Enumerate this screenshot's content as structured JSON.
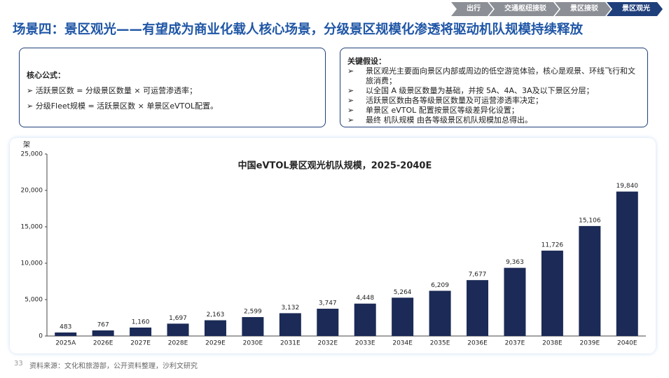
{
  "nav": {
    "tabs": [
      "出行",
      "交通枢纽接驳",
      "景区接驳",
      "景区观光"
    ]
  },
  "header": {
    "title": "场景四：景区观光——有望成为商业化载人核心场景，分级景区规模化渗透将驱动机队规模持续释放"
  },
  "left_box": {
    "heading": "核心公式：",
    "items": [
      "活跃景区数 = 分级景区数量 × 可运营渗透率；",
      "分级Fleet规模 = 活跃景区数 × 单景区eVTOL配置。"
    ]
  },
  "right_box": {
    "heading": "关键假设：",
    "items": [
      "景区观光主要面向景区内部或周边的低空游览体验，核心是观景、环线飞行和文旅消费；",
      "以全国 A 级景区数量为基础，并按 5A、4A、3A及以下景区分层；",
      "活跃景区数由各等级景区数量及可运营渗透率决定；",
      "单景区 eVTOL 配置按景区等级差异化设置；",
      "最终 机队规模 由各等级景区机队规模加总得出。"
    ]
  },
  "chart_data": {
    "type": "bar",
    "title": "中国eVTOL景区观光机队规模，2025-2040E",
    "y_label": "架",
    "categories": [
      "2025A",
      "2026E",
      "2027E",
      "2028E",
      "2029E",
      "2030E",
      "2031E",
      "2032E",
      "2033E",
      "2034E",
      "2035E",
      "2036E",
      "2037E",
      "2038E",
      "2039E",
      "2040E"
    ],
    "values": [
      483,
      767,
      1160,
      1697,
      2163,
      2599,
      3132,
      3747,
      4448,
      5264,
      6209,
      7677,
      9363,
      11726,
      15106,
      19840
    ],
    "value_labels": [
      "483",
      "767",
      "1,160",
      "1,697",
      "2,163",
      "2,599",
      "3,132",
      "3,747",
      "4,448",
      "5,264",
      "6,209",
      "7,677",
      "9,363",
      "11,726",
      "15,106",
      "19,840"
    ],
    "color": "#1b2a56",
    "ylim": [
      0,
      25000
    ],
    "yticks": [
      0,
      {
        "value": 5000,
        "label": "5,000"
      },
      {
        "value": 10000,
        "label": "10,000"
      },
      {
        "value": 15000,
        "label": "15,000"
      },
      {
        "value": 20000,
        "label": "20,000"
      },
      {
        "value": 25000,
        "label": "25,000"
      }
    ]
  },
  "footer": {
    "page": "33",
    "source": "资料来源：文化和旅游部，公开资料整理，沙利文研究"
  }
}
